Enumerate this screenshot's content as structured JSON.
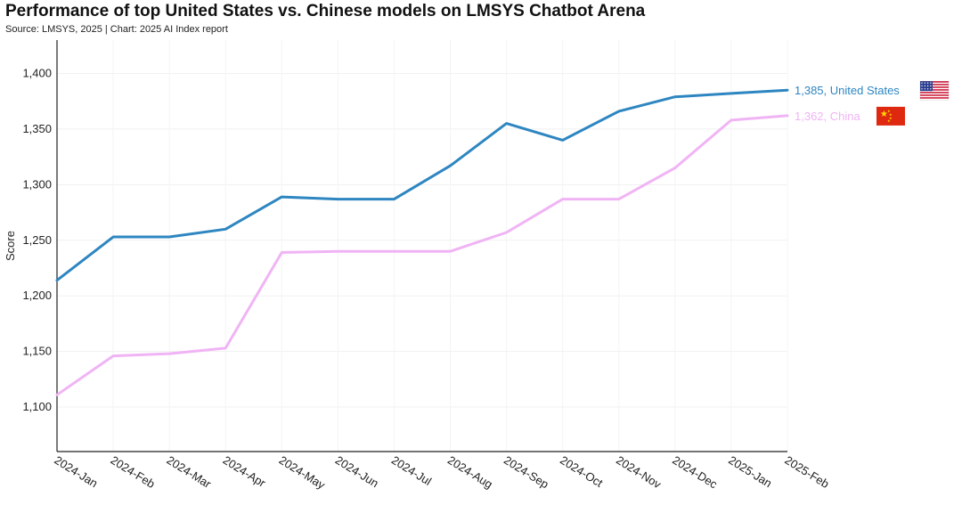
{
  "chart_data": {
    "type": "line",
    "title": "Performance of top United States vs. Chinese models on LMSYS Chatbot Arena",
    "subtitle": "Source: LMSYS, 2025 | Chart: 2025 AI Index report",
    "xlabel": "",
    "ylabel": "Score",
    "ylim": [
      1060,
      1430
    ],
    "yticks": [
      1100,
      1150,
      1200,
      1250,
      1300,
      1350,
      1400
    ],
    "ytick_labels": [
      "1,100",
      "1,150",
      "1,200",
      "1,250",
      "1,300",
      "1,350",
      "1,400"
    ],
    "categories": [
      "2024-Jan",
      "2024-Feb",
      "2024-Mar",
      "2024-Apr",
      "2024-May",
      "2024-Jun",
      "2024-Jul",
      "2024-Aug",
      "2024-Sep",
      "2024-Oct",
      "2024-Nov",
      "2024-Dec",
      "2025-Jan",
      "2025-Feb"
    ],
    "grid": true,
    "legend": "end-labels",
    "series": [
      {
        "name": "United States",
        "end_label": "1,385, United States",
        "color": "#2e86c1",
        "flag_icon": "us-flag-icon",
        "values": [
          1214,
          1253,
          1253,
          1260,
          1289,
          1287,
          1287,
          1317,
          1355,
          1340,
          1366,
          1379,
          1382,
          1385
        ]
      },
      {
        "name": "China",
        "end_label": "1,362, China",
        "color": "#f0b4f5",
        "flag_icon": "china-flag-icon",
        "values": [
          1111,
          1146,
          1148,
          1153,
          1239,
          1240,
          1240,
          1240,
          1257,
          1287,
          1287,
          1315,
          1358,
          1362
        ]
      }
    ]
  }
}
